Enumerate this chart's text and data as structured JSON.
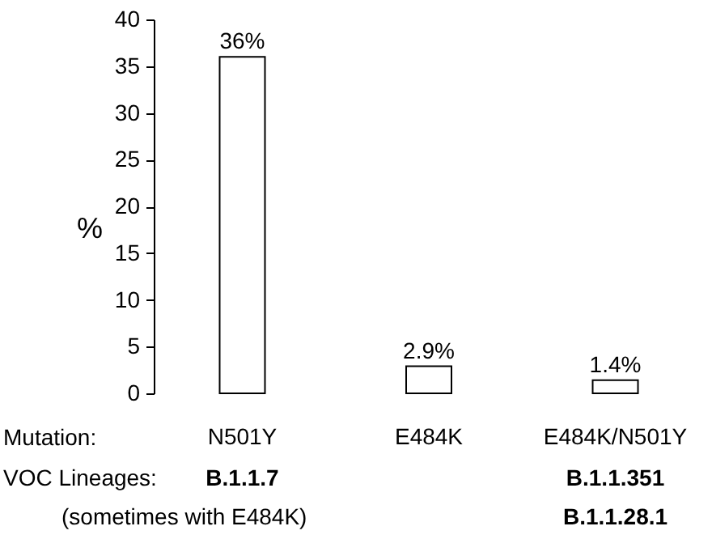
{
  "chart_data": {
    "type": "bar",
    "categories": [
      "N501Y",
      "E484K",
      "E484K/N501Y"
    ],
    "values": [
      36,
      2.9,
      1.4
    ],
    "value_labels": [
      "36%",
      "2.9%",
      "1.4%"
    ],
    "color": "#ffffff",
    "ylabel": "%",
    "xlabel": "Mutation:",
    "ylim": [
      0,
      40
    ],
    "yticks": [
      0,
      5,
      10,
      15,
      20,
      25,
      30,
      35,
      40
    ],
    "grid": false,
    "annotations": [
      "VOC Lineages:",
      "B.1.1.7",
      "B.1.1.351",
      "B.1.1.28.1",
      "(sometimes with E484K)"
    ]
  }
}
